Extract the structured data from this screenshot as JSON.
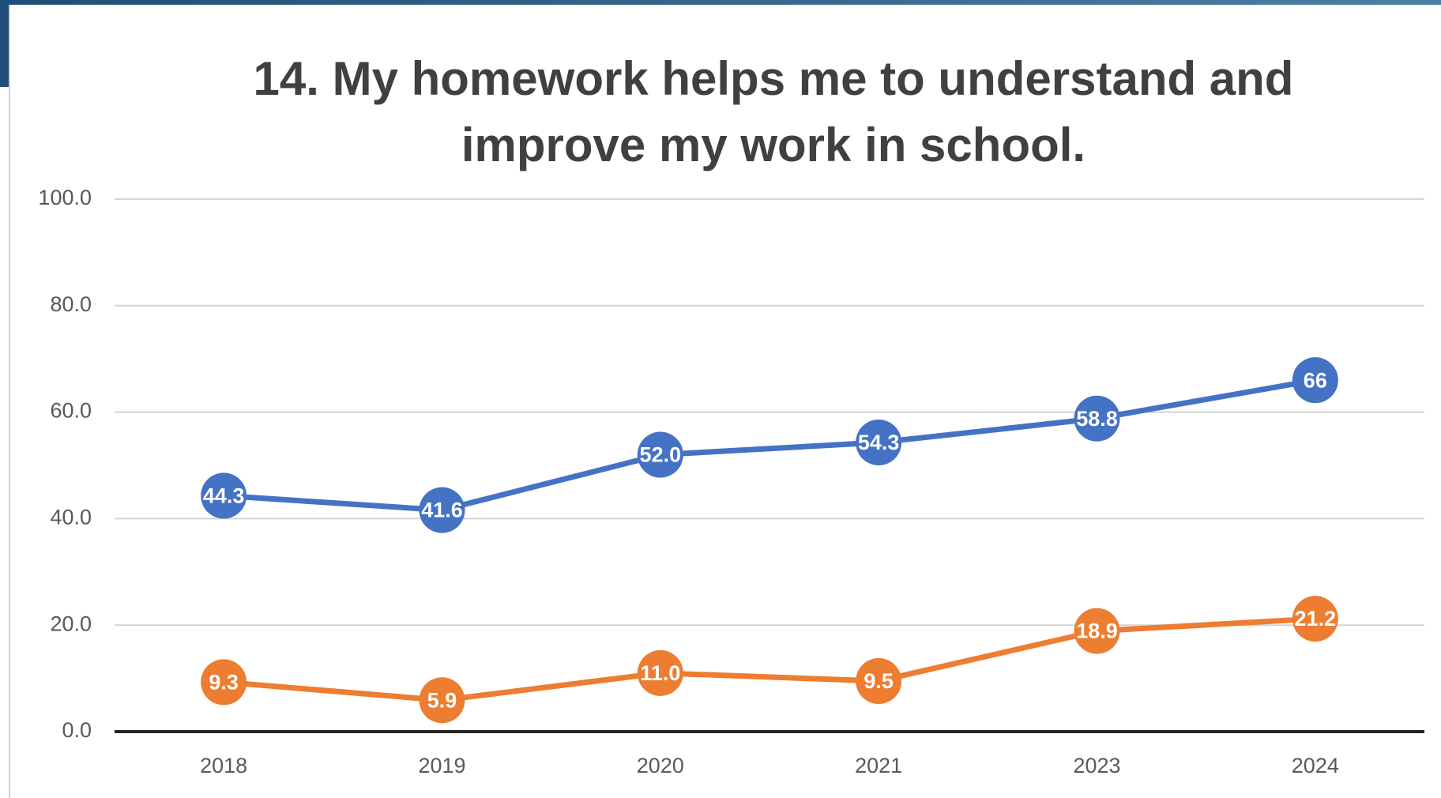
{
  "chart_data": {
    "type": "line",
    "title": "14. My homework helps me to understand and improve my work in school.",
    "categories": [
      "2018",
      "2019",
      "2020",
      "2021",
      "2023",
      "2024"
    ],
    "series": [
      {
        "color": "#4472c4",
        "values": [
          44.3,
          41.6,
          52.0,
          54.3,
          58.8,
          66
        ],
        "value_labels": [
          "44.3",
          "41.6",
          "52.0",
          "54.3",
          "58.8",
          "66"
        ]
      },
      {
        "color": "#ed7d31",
        "values": [
          9.3,
          5.9,
          11.0,
          9.5,
          18.9,
          21.2
        ],
        "value_labels": [
          "9.3",
          "5.9",
          "11.0",
          "9.5",
          "18.9",
          "21.2"
        ]
      }
    ],
    "ylim": [
      0,
      100
    ],
    "yticks": [
      {
        "value": 0,
        "label": "0.0"
      },
      {
        "value": 20,
        "label": "20.0"
      },
      {
        "value": 40,
        "label": "40.0"
      },
      {
        "value": 60,
        "label": "60.0"
      },
      {
        "value": 80,
        "label": "80.0"
      },
      {
        "value": 100,
        "label": "100.0"
      }
    ],
    "grid": true
  }
}
